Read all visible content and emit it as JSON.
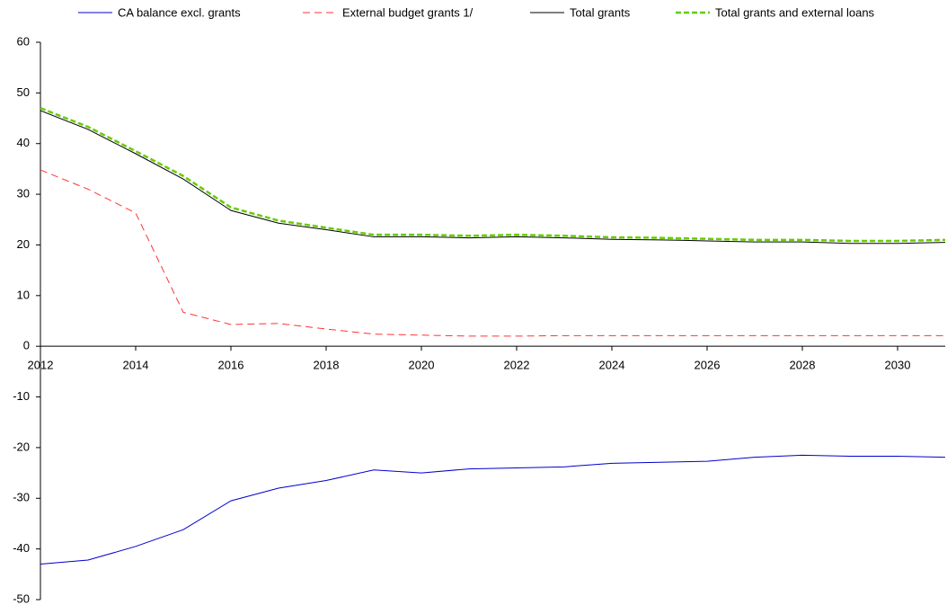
{
  "chart_data": {
    "type": "line",
    "x": [
      2012,
      2013,
      2014,
      2015,
      2016,
      2017,
      2018,
      2019,
      2020,
      2021,
      2022,
      2023,
      2024,
      2025,
      2026,
      2027,
      2028,
      2029,
      2030,
      2031
    ],
    "series": [
      {
        "name": "CA balance excl. grants",
        "color": "#0000cc",
        "style": "solid",
        "width": 1,
        "values": [
          -43,
          -42.2,
          -39.5,
          -36.2,
          -30.5,
          -28,
          -26.5,
          -24.4,
          -25,
          -24.2,
          -24,
          -23.8,
          -23.1,
          -22.9,
          -22.7,
          -21.9,
          -21.5,
          -21.7,
          -21.7,
          -21.9
        ]
      },
      {
        "name": "External budget grants 1/",
        "color": "#ff3333",
        "style": "dashed",
        "width": 1,
        "values": [
          34.8,
          31,
          26.3,
          6.7,
          4.3,
          4.5,
          3.4,
          2.4,
          2.2,
          2.0,
          2.0,
          2.1,
          2.1,
          2.1,
          2.1,
          2.1,
          2.1,
          2.1,
          2.1,
          2.1
        ]
      },
      {
        "name": "Total grants",
        "color": "#000000",
        "style": "solid",
        "width": 1,
        "values": [
          46.5,
          42.8,
          38,
          33,
          26.8,
          24.3,
          23,
          21.6,
          21.6,
          21.4,
          21.6,
          21.4,
          21.1,
          21,
          20.8,
          20.6,
          20.6,
          20.3,
          20.3,
          20.5
        ]
      },
      {
        "name": "Total grants and external loans",
        "color": "#66cc00",
        "style": "dashed",
        "width": 2.5,
        "values": [
          47,
          43.3,
          38.5,
          33.6,
          27.4,
          24.8,
          23.4,
          22,
          22,
          21.8,
          22,
          21.8,
          21.5,
          21.4,
          21.2,
          21,
          21,
          20.8,
          20.8,
          21
        ]
      }
    ],
    "xlim": [
      2012,
      2031
    ],
    "xticks": [
      2012,
      2014,
      2016,
      2018,
      2020,
      2022,
      2024,
      2026,
      2028,
      2030
    ],
    "ylim": [
      -50,
      60
    ],
    "yticks": [
      -50,
      -40,
      -30,
      -20,
      -10,
      0,
      10,
      20,
      30,
      40,
      50,
      60
    ],
    "grid": false,
    "legend": "top"
  }
}
